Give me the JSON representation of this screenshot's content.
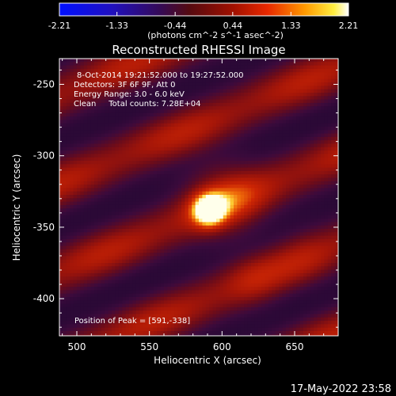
{
  "colorbar": {
    "ticks": [
      "-2.21",
      "-1.33",
      "-0.44",
      "0.44",
      "1.33",
      "2.21"
    ],
    "range": [
      -2.21,
      2.21
    ],
    "unit_label": "(photons cm^-2 s^-1 asec^-2)",
    "colormap": "red-temperature (blue-purple-red-orange-yellow-white)"
  },
  "chart_data": {
    "type": "heatmap",
    "title": "Reconstructed RHESSI Image",
    "xlabel": "Heliocentric X (arcsec)",
    "ylabel": "Heliocentric Y (arcsec)",
    "xlim": [
      488,
      680
    ],
    "ylim": [
      -426,
      -232
    ],
    "xticks": [
      500,
      550,
      600,
      650
    ],
    "yticks": [
      -250,
      -300,
      -350,
      -400
    ],
    "peak": {
      "x": 591,
      "y": -338
    },
    "annotations": [
      "8-Oct-2014 19:21:52.000 to 19:27:52.000",
      "Detectors: 3F 6F 9F, Att 0",
      "Energy Range: 3.0 - 6.0 keV",
      "Clean     Total counts: 7.28E+04",
      "Position of Peak = [591,-338]"
    ]
  },
  "footer": {
    "timestamp": "17-May-2022 23:58"
  }
}
